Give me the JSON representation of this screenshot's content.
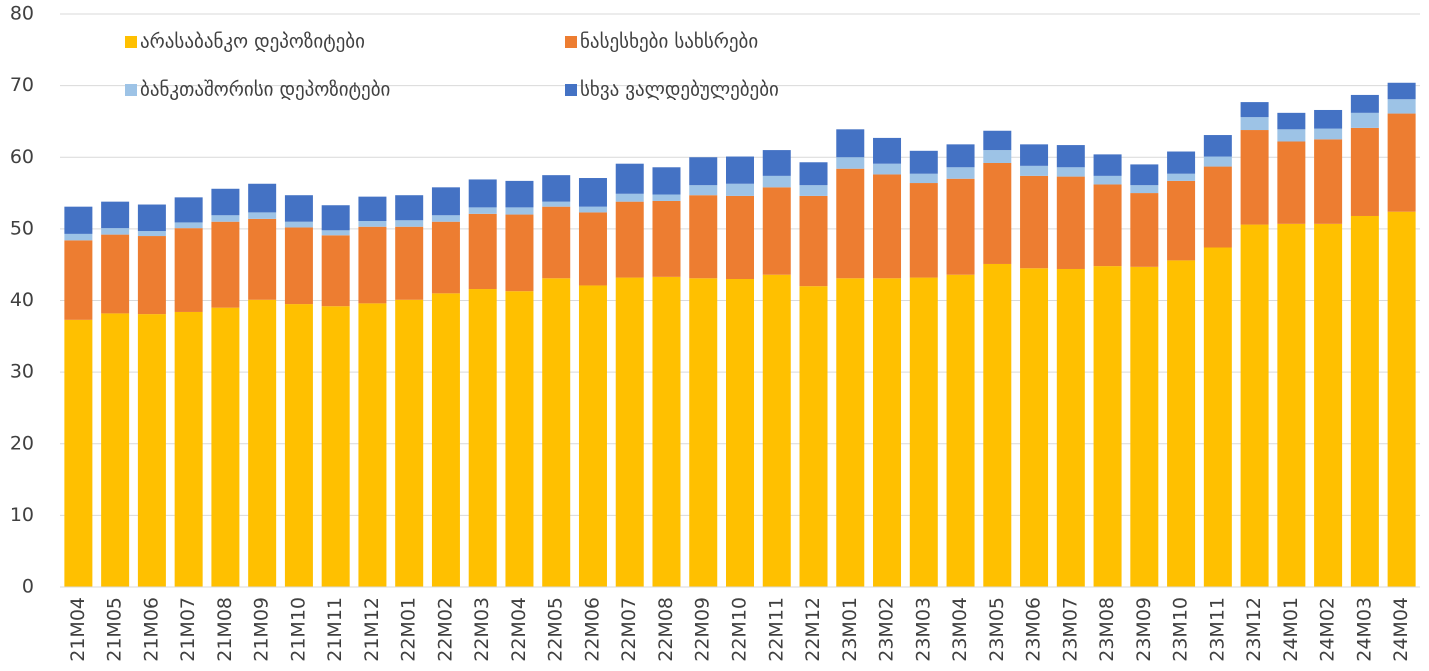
{
  "chart_data": {
    "type": "stacked_bar",
    "categories": [
      "21M04",
      "21M05",
      "21M06",
      "21M07",
      "21M08",
      "21M09",
      "21M10",
      "21M11",
      "21M12",
      "22M01",
      "22M02",
      "22M03",
      "22M04",
      "22M05",
      "22M06",
      "22M07",
      "22M08",
      "22M09",
      "22M10",
      "22M11",
      "22M12",
      "23M01",
      "23M02",
      "23M03",
      "23M04",
      "23M05",
      "23M06",
      "23M07",
      "23M08",
      "23M09",
      "23M10",
      "23M11",
      "23M12",
      "24M01",
      "24M02",
      "24M03",
      "24M04"
    ],
    "series": [
      {
        "name": "არასაბანკო დეპოზიტები",
        "color": "#FFC000",
        "values": [
          37.3,
          38.2,
          38.1,
          38.4,
          39.0,
          40.1,
          39.5,
          39.2,
          39.6,
          40.1,
          41.0,
          41.6,
          41.3,
          43.1,
          42.1,
          43.2,
          43.3,
          43.1,
          43.0,
          43.6,
          42.0,
          43.1,
          43.1,
          43.2,
          43.6,
          45.1,
          44.5,
          44.4,
          44.8,
          44.7,
          45.6,
          47.4,
          50.6,
          50.7,
          50.7,
          51.8,
          52.4
        ]
      },
      {
        "name": "ნასესხები სახსრები",
        "color": "#ED7D31",
        "values": [
          11.1,
          11.0,
          10.9,
          11.7,
          12.0,
          11.3,
          10.7,
          9.9,
          10.7,
          10.2,
          10.0,
          10.5,
          10.7,
          10.0,
          10.2,
          10.6,
          10.6,
          11.6,
          11.6,
          12.2,
          12.6,
          15.3,
          14.5,
          13.2,
          13.4,
          14.1,
          12.9,
          12.9,
          11.4,
          10.3,
          11.1,
          11.3,
          13.2,
          11.5,
          11.8,
          12.3,
          13.7
        ]
      },
      {
        "name": "ბანკთაშორისი დეპოზიტები",
        "color": "#9DC3E6",
        "values": [
          0.9,
          0.9,
          0.7,
          0.8,
          0.9,
          0.9,
          0.8,
          0.7,
          0.8,
          0.9,
          0.9,
          0.9,
          1.0,
          0.7,
          0.8,
          1.1,
          0.9,
          1.4,
          1.7,
          1.6,
          1.5,
          1.6,
          1.5,
          1.3,
          1.6,
          1.8,
          1.4,
          1.3,
          1.2,
          1.1,
          1.0,
          1.4,
          1.8,
          1.7,
          1.5,
          2.1,
          2.0
        ]
      },
      {
        "name": "სხვა ვალდებულებები",
        "color": "#4472C4",
        "values": [
          3.8,
          3.7,
          3.7,
          3.5,
          3.7,
          4.0,
          3.7,
          3.5,
          3.4,
          3.5,
          3.9,
          3.9,
          3.7,
          3.7,
          4.0,
          4.2,
          3.8,
          3.9,
          3.8,
          3.6,
          3.2,
          3.9,
          3.6,
          3.2,
          3.2,
          2.7,
          3.0,
          3.1,
          3.0,
          2.9,
          3.1,
          3.0,
          2.1,
          2.3,
          2.6,
          2.5,
          2.3
        ]
      }
    ],
    "ylim": [
      0,
      80
    ],
    "yticks": [
      0,
      10,
      20,
      30,
      40,
      50,
      60,
      70,
      80
    ],
    "grid": true
  }
}
